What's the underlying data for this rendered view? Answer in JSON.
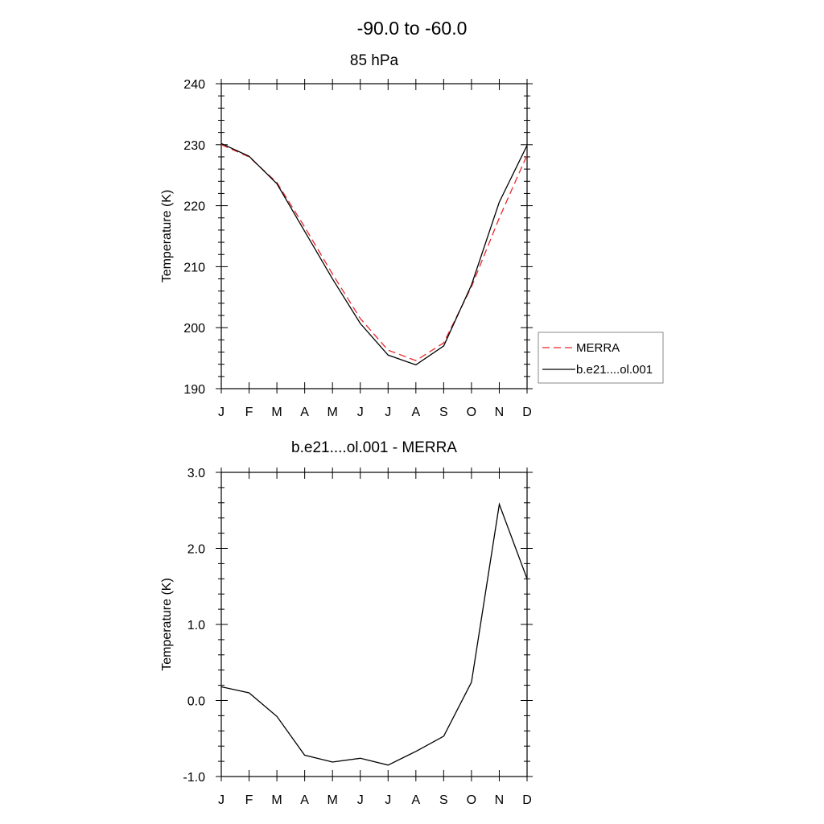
{
  "page": {
    "title": "-90.0 to -60.0"
  },
  "colors": {
    "merra": "#e8282b",
    "model": "#000000",
    "frame": "#000000",
    "legend_border": "#888888"
  },
  "chart_data": [
    {
      "type": "line",
      "title": "85 hPa",
      "xlabel": "",
      "ylabel": "Temperature (K)",
      "categories": [
        "J",
        "F",
        "M",
        "A",
        "M",
        "J",
        "J",
        "A",
        "S",
        "O",
        "N",
        "D"
      ],
      "ylim": [
        190,
        240
      ],
      "yticks": [
        190,
        200,
        210,
        220,
        230,
        240
      ],
      "ytick_labels": [
        "190",
        "200",
        "210",
        "220",
        "230",
        "240"
      ],
      "grid": false,
      "legend": "right",
      "series": [
        {
          "name": "MERRA",
          "style": "dashed",
          "color": "#e8282b",
          "values": [
            230.0,
            228.0,
            223.8,
            216.5,
            208.8,
            201.5,
            196.3,
            194.6,
            197.5,
            206.7,
            218.0,
            228.3
          ]
        },
        {
          "name": "b.e21....ol.001",
          "style": "solid",
          "color": "#000000",
          "values": [
            230.2,
            228.1,
            223.6,
            215.8,
            208.0,
            200.7,
            195.5,
            193.9,
            197.0,
            207.0,
            220.6,
            229.9
          ]
        }
      ]
    },
    {
      "type": "line",
      "title": "b.e21....ol.001 - MERRA",
      "xlabel": "",
      "ylabel": "Temperature (K)",
      "categories": [
        "J",
        "F",
        "M",
        "A",
        "M",
        "J",
        "J",
        "A",
        "S",
        "O",
        "N",
        "D"
      ],
      "ylim": [
        -1.0,
        3.0
      ],
      "yticks": [
        -1.0,
        0.0,
        1.0,
        2.0,
        3.0
      ],
      "ytick_labels": [
        "-1.0",
        "0.0",
        "1.0",
        "2.0",
        "3.0"
      ],
      "grid": false,
      "series": [
        {
          "style": "solid",
          "color": "#000000",
          "values": [
            0.18,
            0.1,
            -0.21,
            -0.72,
            -0.81,
            -0.76,
            -0.85,
            -0.67,
            -0.47,
            0.24,
            2.58,
            1.6
          ]
        }
      ]
    }
  ]
}
